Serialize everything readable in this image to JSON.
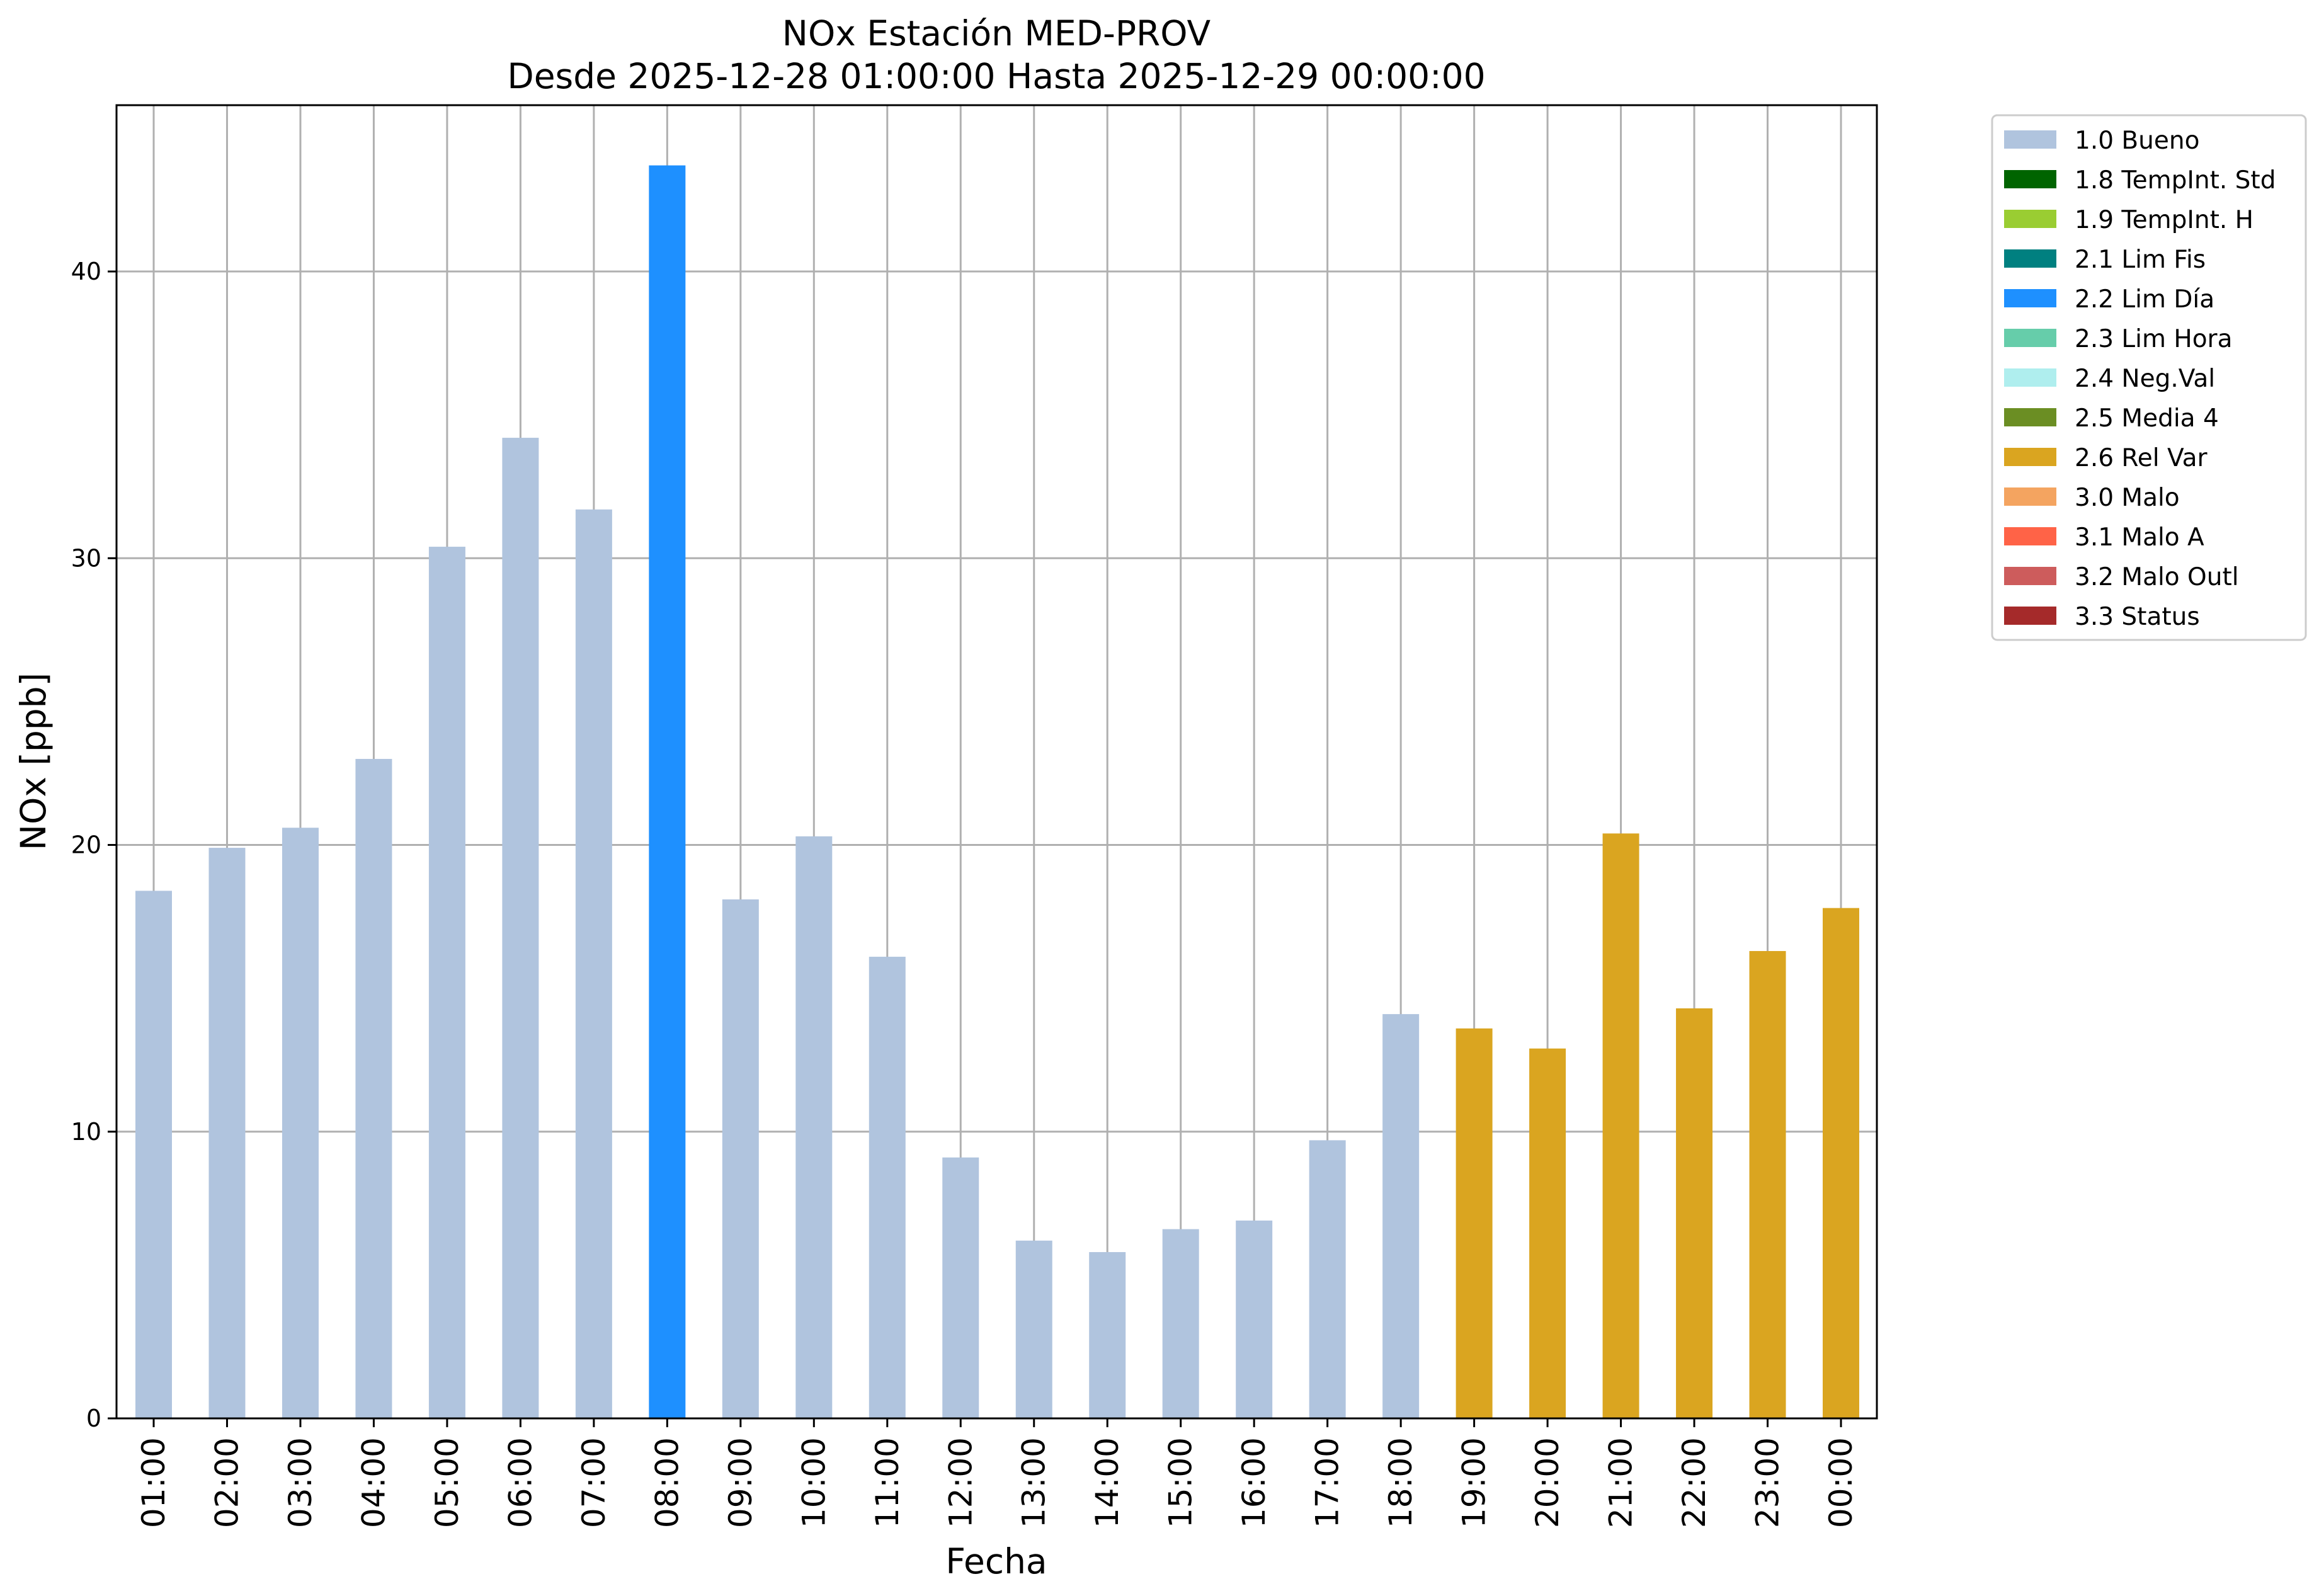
{
  "chart_data": {
    "type": "bar",
    "title": "NOx Estación MED-PROV",
    "subtitle": "Desde 2025-12-28 01:00:00 Hasta 2025-12-29 00:00:00",
    "xlabel": "Fecha",
    "ylabel": "NOx [ppb]",
    "ylim": [
      0,
      45.8
    ],
    "yticks": [
      0,
      10,
      20,
      30,
      40
    ],
    "grid": true,
    "legend_position": "outside-top-right",
    "categories": [
      "01:00",
      "02:00",
      "03:00",
      "04:00",
      "05:00",
      "06:00",
      "07:00",
      "08:00",
      "09:00",
      "10:00",
      "11:00",
      "12:00",
      "13:00",
      "14:00",
      "15:00",
      "16:00",
      "17:00",
      "18:00",
      "19:00",
      "20:00",
      "21:00",
      "22:00",
      "23:00",
      "00:00"
    ],
    "values": [
      18.4,
      19.9,
      20.6,
      23.0,
      30.4,
      34.2,
      31.7,
      43.7,
      18.1,
      20.3,
      16.1,
      9.1,
      6.2,
      5.8,
      6.6,
      6.9,
      9.7,
      14.1,
      13.6,
      12.9,
      20.4,
      14.3,
      16.3,
      17.8
    ],
    "flags": [
      "1.0 Bueno",
      "1.0 Bueno",
      "1.0 Bueno",
      "1.0 Bueno",
      "1.0 Bueno",
      "1.0 Bueno",
      "1.0 Bueno",
      "2.2 Lim Día",
      "1.0 Bueno",
      "1.0 Bueno",
      "1.0 Bueno",
      "1.0 Bueno",
      "1.0 Bueno",
      "1.0 Bueno",
      "1.0 Bueno",
      "1.0 Bueno",
      "1.0 Bueno",
      "1.0 Bueno",
      "2.6 Rel Var",
      "2.6 Rel Var",
      "2.6 Rel Var",
      "2.6 Rel Var",
      "2.6 Rel Var",
      "2.6 Rel Var"
    ],
    "legend": [
      {
        "label": "1.0 Bueno",
        "color": "#b0c4de"
      },
      {
        "label": "1.8 TempInt. Std",
        "color": "#006400"
      },
      {
        "label": "1.9 TempInt. H",
        "color": "#9acd32"
      },
      {
        "label": "2.1 Lim Fis",
        "color": "#008080"
      },
      {
        "label": "2.2 Lim Día",
        "color": "#1e90ff"
      },
      {
        "label": "2.3 Lim Hora",
        "color": "#66cdaa"
      },
      {
        "label": "2.4 Neg.Val",
        "color": "#afeeee"
      },
      {
        "label": "2.5 Media 4",
        "color": "#6b8e23"
      },
      {
        "label": "2.6 Rel Var",
        "color": "#daa520"
      },
      {
        "label": "3.0 Malo",
        "color": "#f4a460"
      },
      {
        "label": "3.1 Malo A",
        "color": "#ff6347"
      },
      {
        "label": "3.2 Malo Outl",
        "color": "#cd5c5c"
      },
      {
        "label": "3.3 Status",
        "color": "#a52a2a"
      }
    ]
  }
}
